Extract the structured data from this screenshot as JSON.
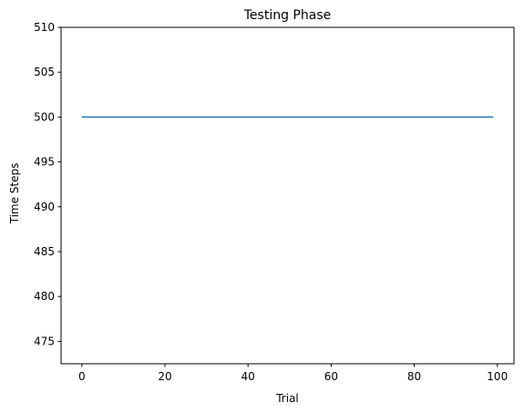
{
  "chart_data": {
    "type": "line",
    "title": "Testing Phase",
    "xlabel": "Trial",
    "ylabel": "Time Steps",
    "xlim": [
      -5,
      104
    ],
    "ylim": [
      472.5,
      510
    ],
    "xticks": [
      0,
      20,
      40,
      60,
      80,
      100
    ],
    "yticks": [
      475,
      480,
      485,
      490,
      495,
      500,
      505,
      510
    ],
    "grid": false,
    "series": [
      {
        "color": "#1f77b4",
        "x": [
          0,
          99
        ],
        "y": [
          500,
          500
        ]
      }
    ]
  }
}
